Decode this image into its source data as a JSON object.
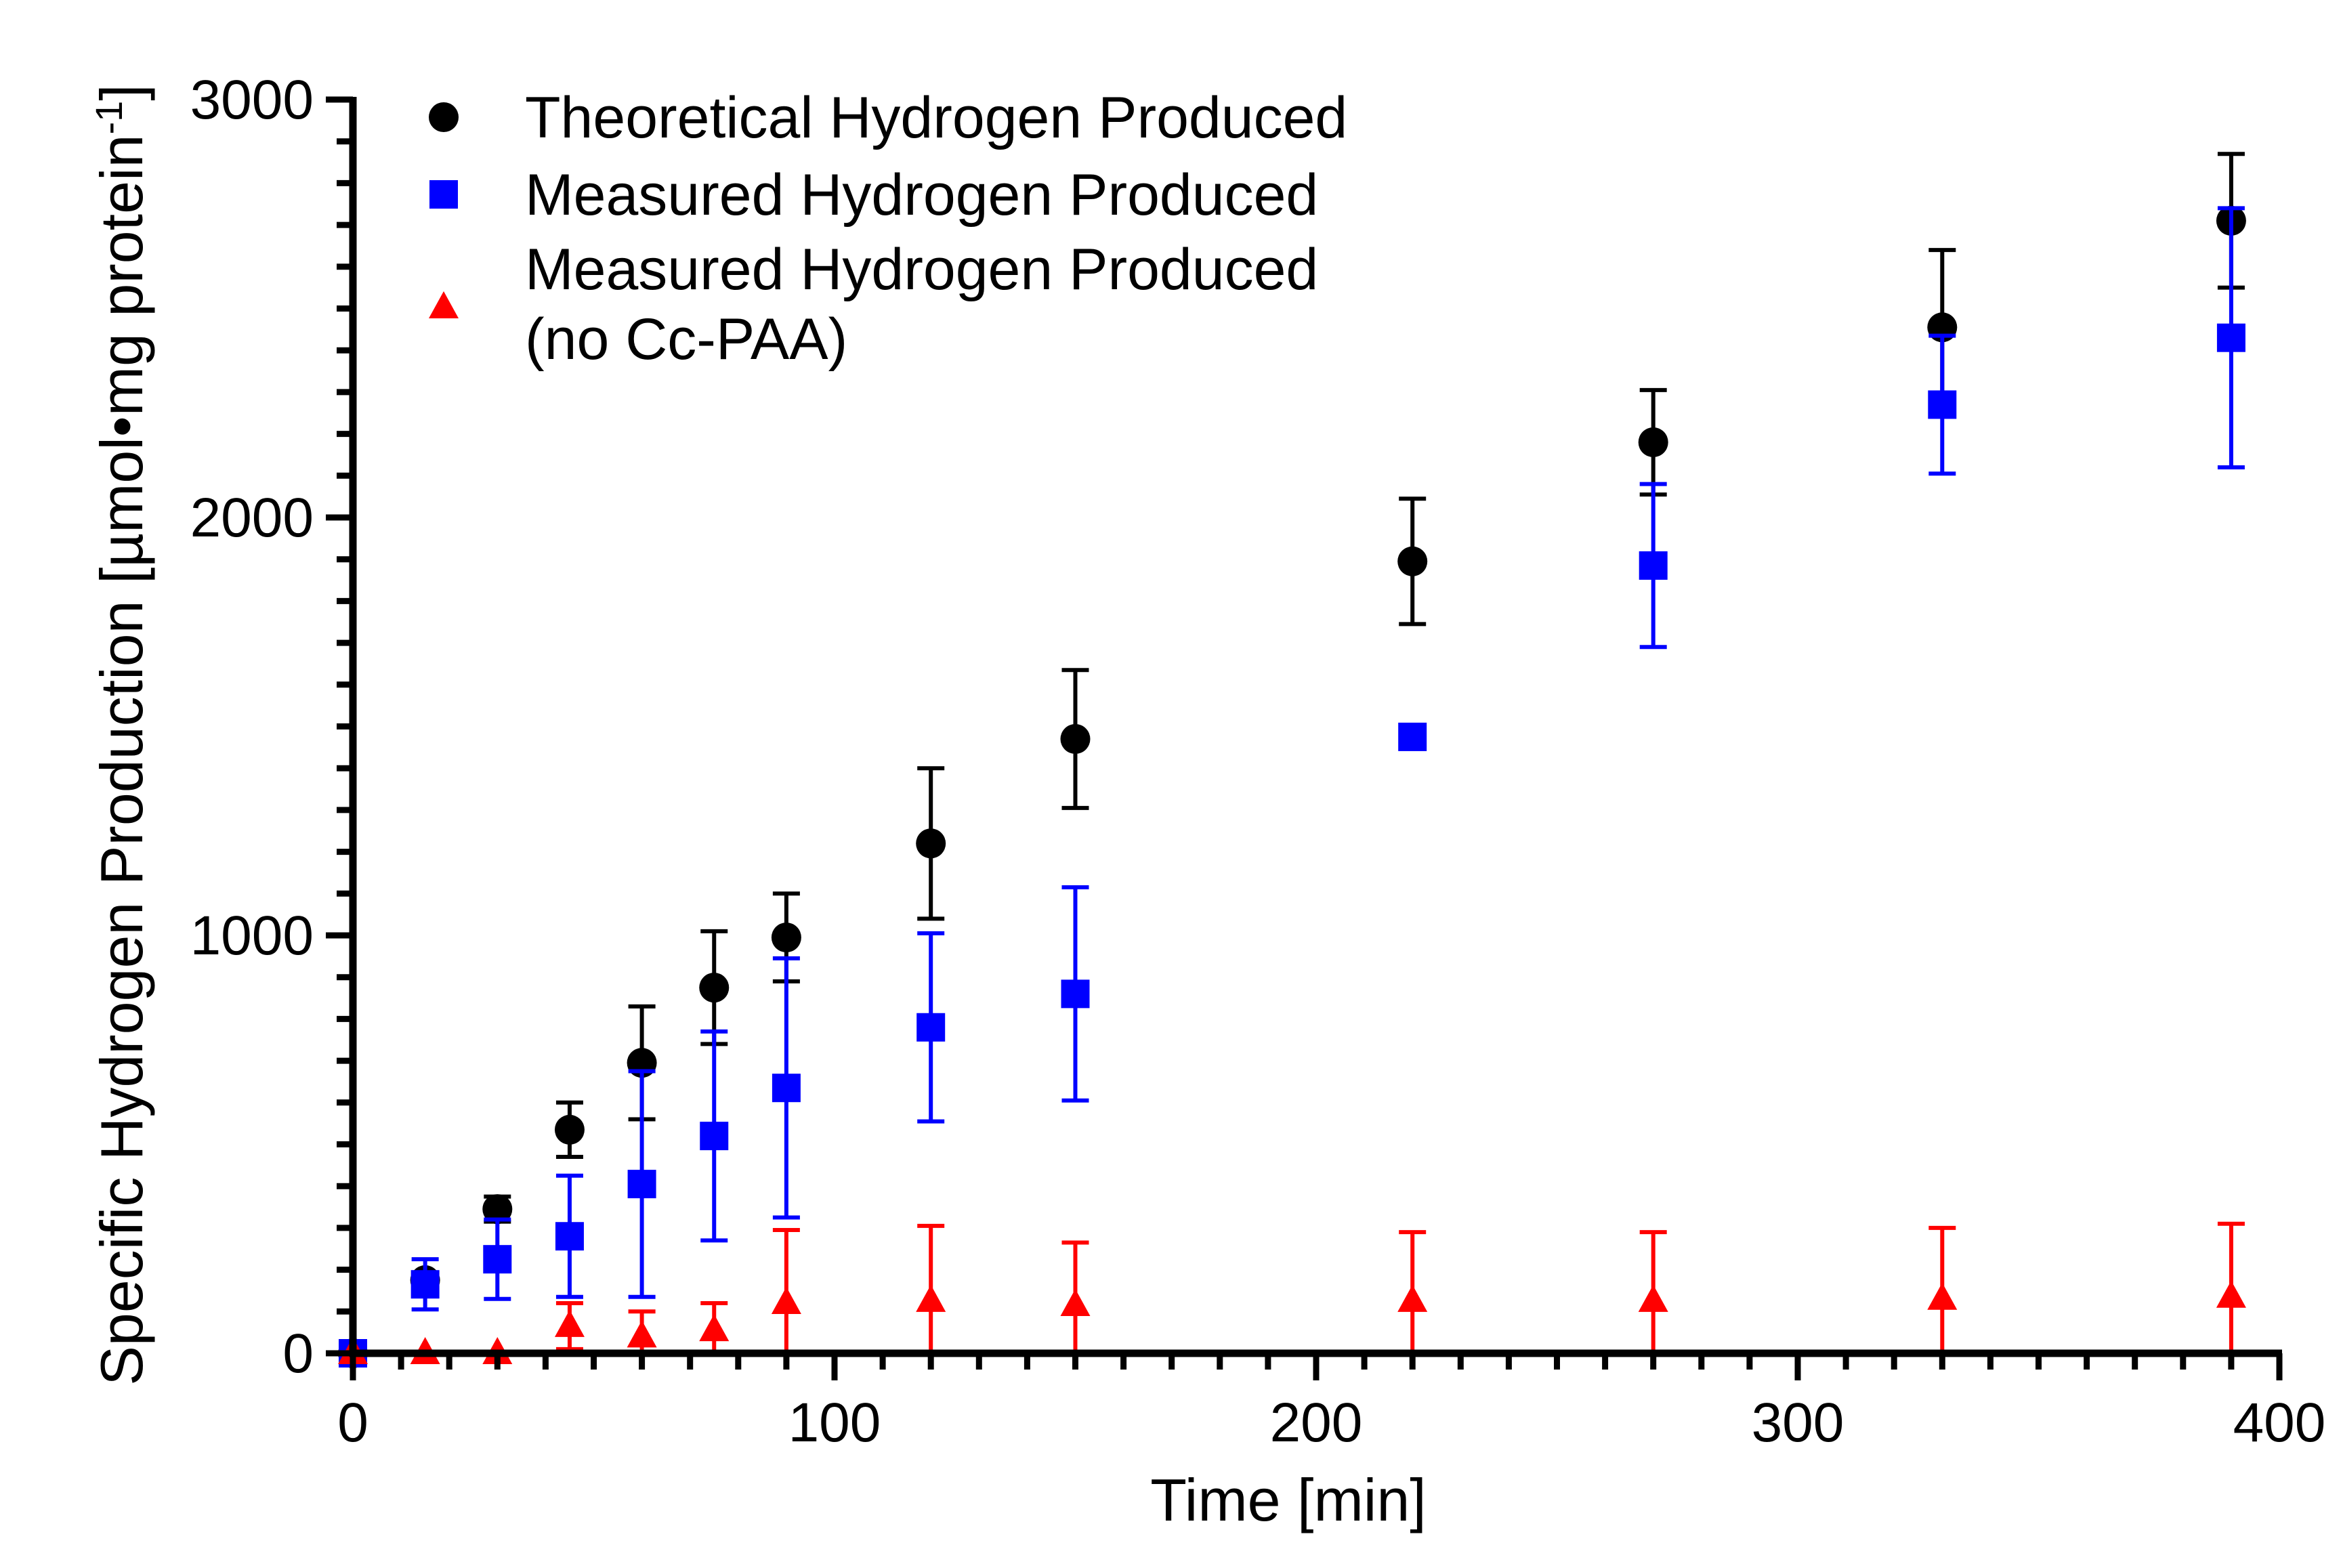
{
  "chart_data": {
    "type": "scatter",
    "title": "",
    "xlabel": "Time [min]",
    "ylabel_main": "Specific Hydrogen Production [µmol•mg protein",
    "ylabel_sup": "-1",
    "ylabel_close": "]",
    "xlim": [
      0,
      400
    ],
    "ylim": [
      0,
      3000
    ],
    "xticks": [
      0,
      100,
      200,
      300,
      400
    ],
    "xtick_labels": [
      "0",
      "100",
      "200",
      "300",
      "400"
    ],
    "yticks": [
      0,
      1000,
      2000,
      3000
    ],
    "ytick_labels": [
      "0",
      "1000",
      "2000",
      "3000"
    ],
    "x_minor_step": 10,
    "y_minor_step": 100,
    "legend_position": "top-left",
    "series": [
      {
        "name": "Theoretical Hydrogen Produced",
        "marker": "circle",
        "color": "#000000",
        "x": [
          0,
          15,
          30,
          45,
          60,
          75,
          90,
          120,
          150,
          220,
          270,
          330,
          390
        ],
        "y": [
          0,
          175,
          345,
          535,
          695,
          875,
          995,
          1220,
          1470,
          1895,
          2180,
          2455,
          2710
        ],
        "err": [
          0,
          0,
          30,
          65,
          135,
          135,
          105,
          180,
          165,
          150,
          125,
          185,
          160
        ]
      },
      {
        "name": "Measured Hydrogen Produced",
        "marker": "square",
        "color": "#0000ff",
        "x": [
          0,
          15,
          30,
          45,
          60,
          75,
          90,
          120,
          150,
          220,
          270,
          330,
          390
        ],
        "y": [
          0,
          165,
          225,
          280,
          405,
          520,
          635,
          780,
          860,
          1475,
          1885,
          2270,
          2430
        ],
        "err": [
          0,
          60,
          95,
          145,
          270,
          250,
          310,
          225,
          255,
          0,
          195,
          165,
          310
        ]
      },
      {
        "name_line1": "Measured Hydrogen Produced",
        "name_line2": "(no Cc-PAA)",
        "marker": "triangle",
        "color": "#ff0000",
        "x": [
          0,
          15,
          30,
          45,
          60,
          75,
          90,
          120,
          150,
          220,
          270,
          330,
          390
        ],
        "y": [
          0,
          0,
          0,
          65,
          40,
          55,
          120,
          125,
          115,
          125,
          125,
          130,
          135
        ],
        "err": [
          0,
          0,
          0,
          55,
          60,
          65,
          175,
          180,
          150,
          165,
          165,
          170,
          175
        ]
      }
    ]
  }
}
